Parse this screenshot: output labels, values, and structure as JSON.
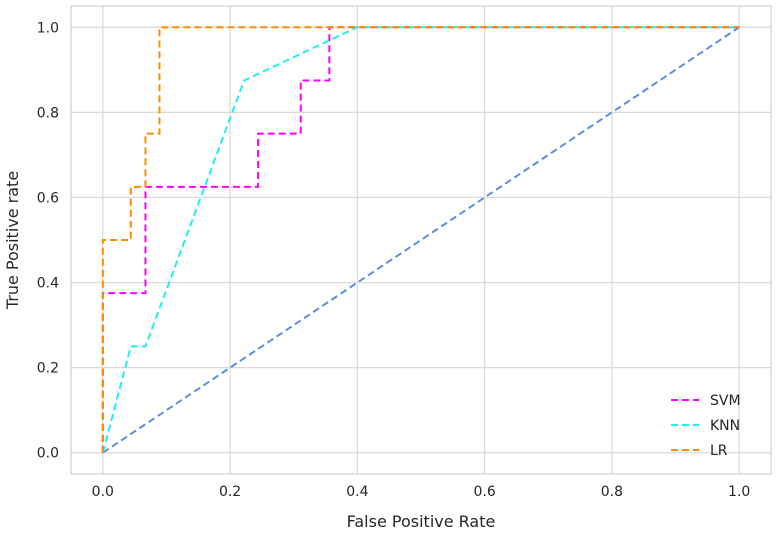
{
  "chart_data": {
    "type": "line",
    "title": "",
    "xlabel": "False Positive Rate",
    "ylabel": "True Positive rate",
    "xlim": [
      -0.05,
      1.05
    ],
    "ylim": [
      -0.05,
      1.05
    ],
    "xticks": [
      0.0,
      0.2,
      0.4,
      0.6,
      0.8,
      1.0
    ],
    "yticks": [
      0.0,
      0.2,
      0.4,
      0.6,
      0.8,
      1.0
    ],
    "xtick_labels": [
      "0.0",
      "0.2",
      "0.4",
      "0.6",
      "0.8",
      "1.0"
    ],
    "ytick_labels": [
      "0.0",
      "0.2",
      "0.4",
      "0.6",
      "0.8",
      "1.0"
    ],
    "grid": true,
    "legend_position": "lower-right",
    "series": [
      {
        "name": "SVM",
        "color": "#ff00ff",
        "dash": "dashed",
        "x": [
          0.0,
          0.0,
          0.067,
          0.067,
          0.244,
          0.244,
          0.311,
          0.311,
          0.356,
          0.356,
          0.4,
          1.0
        ],
        "y": [
          0.0,
          0.375,
          0.375,
          0.625,
          0.625,
          0.75,
          0.75,
          0.875,
          0.875,
          1.0,
          1.0,
          1.0
        ]
      },
      {
        "name": "KNN",
        "color": "#22eeee",
        "dash": "dashed",
        "x": [
          0.0,
          0.044,
          0.067,
          0.222,
          0.4,
          1.0
        ],
        "y": [
          0.0,
          0.25,
          0.25,
          0.875,
          1.0,
          1.0
        ]
      },
      {
        "name": "LR",
        "color": "#ff8c00",
        "dash": "dashed",
        "x": [
          0.0,
          0.0,
          0.0,
          0.044,
          0.044,
          0.067,
          0.067,
          0.089,
          0.089,
          1.0
        ],
        "y": [
          0.0,
          0.0,
          0.5,
          0.5,
          0.625,
          0.625,
          0.75,
          0.75,
          1.0,
          1.0
        ]
      },
      {
        "name": "",
        "color": "#5b8fde",
        "dash": "dashed",
        "x": [
          0.0,
          1.0
        ],
        "y": [
          0.0,
          1.0
        ]
      }
    ]
  }
}
